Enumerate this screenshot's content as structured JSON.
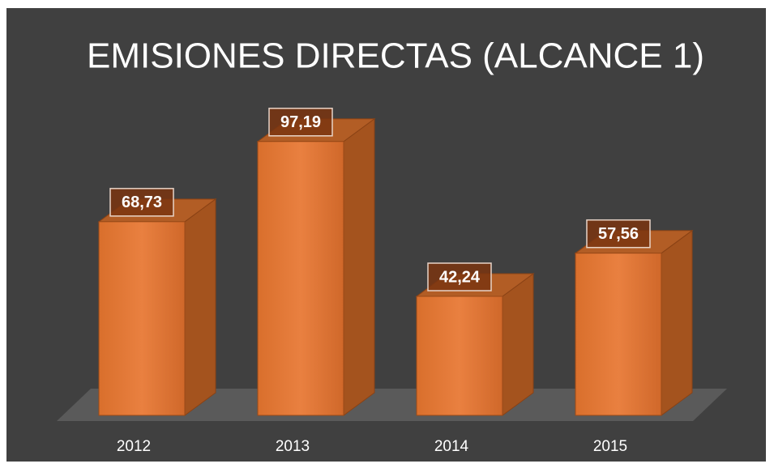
{
  "chart_data": {
    "type": "bar3d",
    "title": "EMISIONES DIRECTAS (ALCANCE 1)",
    "categories": [
      "2012",
      "2013",
      "2014",
      "2015"
    ],
    "values": [
      68.73,
      97.19,
      42.24,
      57.56
    ],
    "value_labels": [
      "68,73",
      "97,19",
      "42,24",
      "57,56"
    ],
    "color": "#e07a35",
    "ylim": [
      0,
      100
    ]
  }
}
